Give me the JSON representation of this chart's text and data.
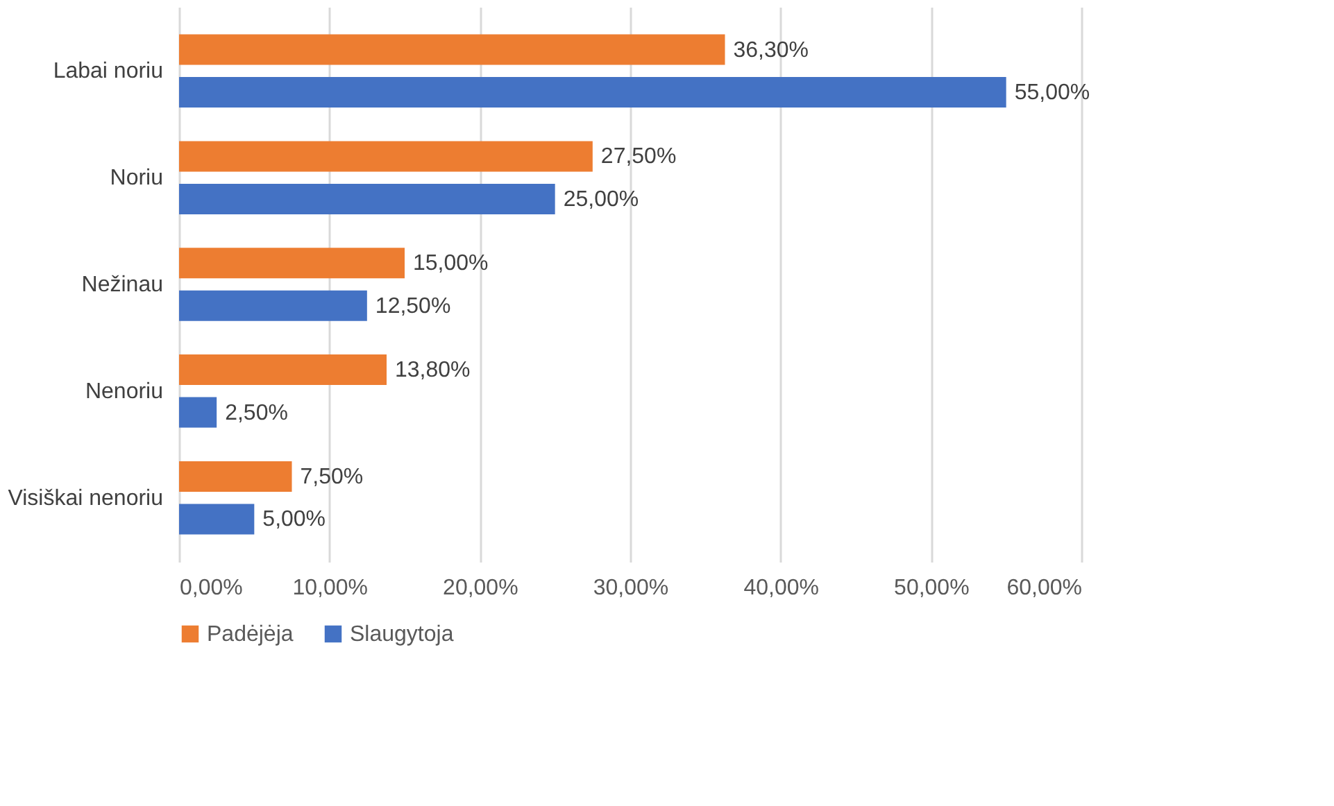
{
  "chart_data": {
    "type": "bar",
    "orientation": "horizontal",
    "categories": [
      "Labai noriu",
      "Noriu",
      "Nežinau",
      "Nenoriu",
      "Visiškai nenoriu"
    ],
    "series": [
      {
        "name": "Padėjėja",
        "color": "#ed7d31",
        "values": [
          36.3,
          27.5,
          15.0,
          13.8,
          7.5
        ],
        "value_labels": [
          "36,30%",
          "27,50%",
          "15,00%",
          "13,80%",
          "7,50%"
        ]
      },
      {
        "name": "Slaugytoja",
        "color": "#4472c4",
        "values": [
          55.0,
          25.0,
          12.5,
          2.5,
          5.0
        ],
        "value_labels": [
          "55,00%",
          "25,00%",
          "12,50%",
          "2,50%",
          "5,00%"
        ]
      }
    ],
    "xlim": [
      0,
      60
    ],
    "xticks": [
      {
        "value": 0,
        "label": "0,00%"
      },
      {
        "value": 10,
        "label": "10,00%"
      },
      {
        "value": 20,
        "label": "20,00%"
      },
      {
        "value": 30,
        "label": "30,00%"
      },
      {
        "value": 40,
        "label": "40,00%"
      },
      {
        "value": 50,
        "label": "50,00%"
      },
      {
        "value": 60,
        "label": "60,00%"
      }
    ],
    "grid": "x",
    "legend": "bottom"
  }
}
